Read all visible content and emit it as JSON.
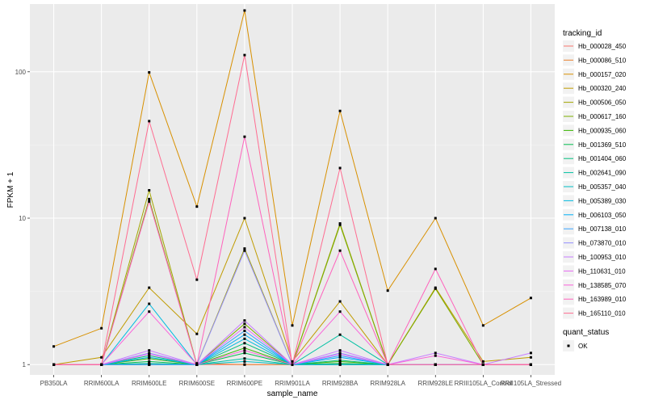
{
  "chart_data": {
    "type": "line",
    "xlabel": "sample_name",
    "ylabel": "FPKM + 1",
    "y_scale": "log10",
    "ylim": [
      0.85,
      290
    ],
    "y_ticks": [
      {
        "value": 1,
        "label": "1"
      },
      {
        "value": 10,
        "label": "10"
      },
      {
        "value": 100,
        "label": "100"
      }
    ],
    "grid": true,
    "legend_position": "right",
    "categories": [
      "PB350LA",
      "RRIM600LA",
      "RRIM600LE",
      "RRIM600SE",
      "RRIM600PE",
      "RRIM901LA",
      "RRIM928BA",
      "RRIM928LA",
      "RRIM928LE",
      "RRIII105LA_Control",
      "RRII105LA_Stressed"
    ],
    "legend_title": "tracking_id",
    "shape_legend_title": "quant_status",
    "shape_legend_items": [
      "OK"
    ],
    "colors": [
      "#F8766D",
      "#EA8331",
      "#D89000",
      "#C09B00",
      "#A3A500",
      "#7CAE00",
      "#39B600",
      "#00BB4E",
      "#00BF7D",
      "#00C1A3",
      "#00BFC4",
      "#00BAE0",
      "#00B0F6",
      "#35A2FF",
      "#9590FF",
      "#C77CFF",
      "#E76BF3",
      "#FA62DB",
      "#FF62BC",
      "#FF6C91"
    ],
    "series": [
      {
        "name": "Hb_000028_450",
        "values": [
          1,
          1,
          1,
          1,
          1,
          1,
          1,
          1,
          1,
          1,
          1
        ]
      },
      {
        "name": "Hb_000086_510",
        "values": [
          1,
          1,
          1,
          1.02,
          1,
          1,
          1,
          1,
          1,
          1,
          1
        ]
      },
      {
        "name": "Hb_000157_020",
        "values": [
          1.33,
          1.77,
          99,
          12,
          262,
          1.85,
          54,
          3.2,
          10,
          1.85,
          2.85
        ]
      },
      {
        "name": "Hb_000320_240",
        "values": [
          1,
          1.12,
          3.35,
          1.62,
          10,
          1.05,
          2.7,
          1,
          3.35,
          1.05,
          1.12
        ]
      },
      {
        "name": "Hb_000506_050",
        "values": [
          1,
          1,
          15.5,
          1,
          6.2,
          1,
          9.2,
          1,
          1,
          1,
          1
        ]
      },
      {
        "name": "Hb_000617_160",
        "values": [
          1,
          1,
          13.5,
          1,
          1.9,
          1,
          9,
          1,
          3.3,
          1,
          1
        ]
      },
      {
        "name": "Hb_000935_060",
        "values": [
          1,
          1,
          1.1,
          1,
          1.3,
          1,
          1.05,
          1,
          1,
          1,
          1
        ]
      },
      {
        "name": "Hb_001369_510",
        "values": [
          1,
          1,
          1.05,
          1,
          1.2,
          1,
          1.02,
          1,
          1,
          1,
          1
        ]
      },
      {
        "name": "Hb_001404_060",
        "values": [
          1,
          1,
          1.15,
          1,
          1.4,
          1,
          1.07,
          1,
          1,
          1,
          1
        ]
      },
      {
        "name": "Hb_002641_090",
        "values": [
          1,
          1,
          1.02,
          1,
          1.1,
          1,
          1.6,
          1,
          1,
          1,
          1
        ]
      },
      {
        "name": "Hb_005357_040",
        "values": [
          1,
          1,
          1,
          1,
          1.05,
          1,
          1,
          1,
          1,
          1,
          1
        ]
      },
      {
        "name": "Hb_005389_030",
        "values": [
          1,
          1,
          2.6,
          1,
          1.5,
          1,
          1,
          1,
          1,
          1,
          1
        ]
      },
      {
        "name": "Hb_006103_050",
        "values": [
          1,
          1,
          1.12,
          1,
          1.6,
          1,
          1.12,
          1,
          1,
          1,
          1
        ]
      },
      {
        "name": "Hb_007138_010",
        "values": [
          1,
          1,
          1,
          1,
          1.7,
          1,
          1.15,
          1,
          1,
          1,
          1
        ]
      },
      {
        "name": "Hb_073870_010",
        "values": [
          1,
          1,
          1.2,
          1,
          6,
          1,
          1.2,
          1,
          1,
          1,
          1
        ]
      },
      {
        "name": "Hb_100953_010",
        "values": [
          1,
          1,
          1.25,
          1,
          2,
          1,
          1.25,
          1,
          1.2,
          1,
          1.2
        ]
      },
      {
        "name": "Hb_110631_010",
        "values": [
          1,
          1,
          1.18,
          1,
          1.8,
          1,
          1.18,
          1,
          1,
          1,
          1
        ]
      },
      {
        "name": "Hb_138585_070",
        "values": [
          1,
          1,
          2.3,
          1,
          1.25,
          1,
          2.3,
          1,
          1.15,
          1,
          1
        ]
      },
      {
        "name": "Hb_163989_010",
        "values": [
          1,
          1,
          13,
          1,
          36,
          1,
          6,
          1,
          4.5,
          1,
          1
        ]
      },
      {
        "name": "Hb_165110_010",
        "values": [
          1,
          1,
          46,
          3.8,
          130,
          1,
          22,
          1,
          1,
          1,
          1
        ]
      }
    ]
  }
}
